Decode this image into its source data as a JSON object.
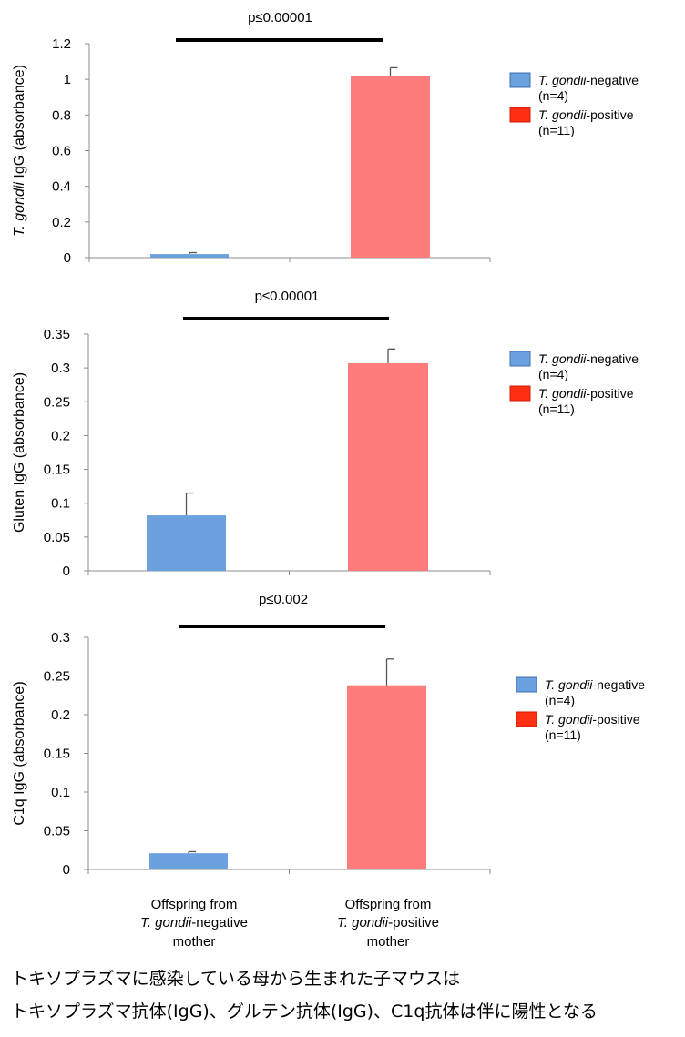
{
  "chart_data": [
    {
      "type": "bar",
      "ylabel_italic": "T. gondii",
      "ylabel_rest": " IgG (absorbance)",
      "ylim": [
        0,
        1.2
      ],
      "yticks": [
        0,
        0.2,
        0.4,
        0.6,
        0.8,
        1,
        1.2
      ],
      "ytick_labels": [
        "0",
        "0.2",
        "0.4",
        "0.6",
        "0.8",
        "1",
        "1.2"
      ],
      "values": [
        0.02,
        1.02
      ],
      "errors": [
        0.008,
        0.045
      ],
      "significance": "p≤0.00001",
      "legend_placement": "right"
    },
    {
      "type": "bar",
      "ylabel_italic": "",
      "ylabel_rest": "Gluten IgG (absorbance)",
      "ylim": [
        0,
        0.35
      ],
      "yticks": [
        0,
        0.05,
        0.1,
        0.15,
        0.2,
        0.25,
        0.3,
        0.35
      ],
      "ytick_labels": [
        "0",
        "0.05",
        "0.1",
        "0.15",
        "0.2",
        "0.25",
        "0.3",
        "0.35"
      ],
      "values": [
        0.082,
        0.307
      ],
      "errors": [
        0.033,
        0.021
      ],
      "significance": "p≤0.00001",
      "legend_placement": "right"
    },
    {
      "type": "bar",
      "ylabel_italic": "",
      "ylabel_rest": "C1q IgG (absorbance)",
      "ylim": [
        0,
        0.3
      ],
      "yticks": [
        0,
        0.05,
        0.1,
        0.15,
        0.2,
        0.25,
        0.3
      ],
      "ytick_labels": [
        "0",
        "0.05",
        "0.1",
        "0.15",
        "0.2",
        "0.25",
        "0.3"
      ],
      "values": [
        0.021,
        0.238
      ],
      "errors": [
        0.002,
        0.034
      ],
      "significance": "p≤0.002",
      "legend_placement": "right"
    }
  ],
  "series": [
    {
      "name_italic": "T. gondii",
      "name_rest": "-negative",
      "n": "(n=4)",
      "bar_color": "#6aa1de",
      "legend_color": "#6aa1de"
    },
    {
      "name_italic": "T. gondii",
      "name_rest": "-positive",
      "n": "(n=11)",
      "bar_color": "#ff7c7c",
      "legend_color": "#ff2f12"
    }
  ],
  "categories": [
    {
      "line1": "Offspring from",
      "line2_italic": "T. gondii",
      "line2_rest": "-negative",
      "line3": "mother"
    },
    {
      "line1": "Offspring from",
      "line2_italic": "T. gondii",
      "line2_rest": "-positive",
      "line3": "mother"
    }
  ],
  "caption": {
    "line1": "トキソプラズマに感染している母から生まれた子マウスは",
    "line2": "トキソプラズマ抗体(IgG)、グルテン抗体(IgG)、C1q抗体は伴に陽性となる"
  }
}
